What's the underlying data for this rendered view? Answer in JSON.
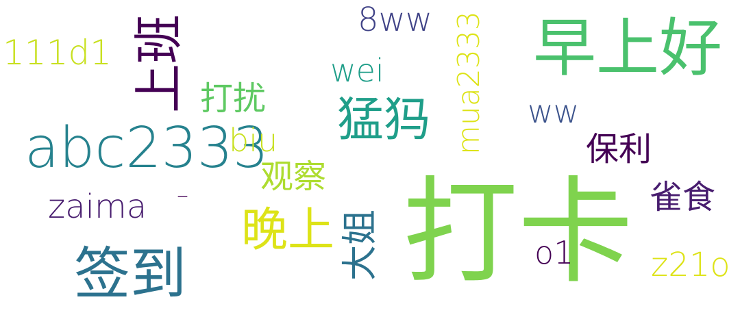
{
  "words": {
    "dk": {
      "text": "打卡",
      "color": "#7fd34e"
    },
    "zsh": {
      "text": "早上好",
      "color": "#4ac16d"
    },
    "abc": {
      "text": "abc2333",
      "color": "#26828e"
    },
    "qd": {
      "text": "签到",
      "color": "#2c728e"
    },
    "sb": {
      "text": "上班",
      "color": "#440154"
    },
    "wan": {
      "text": "晚上",
      "color": "#dde318"
    },
    "mg": {
      "text": "猛犸",
      "color": "#1f9e89"
    },
    "mua": {
      "text": "mua2333",
      "color": "#dde318"
    },
    "dj": {
      "text": "大姐",
      "color": "#2c728e"
    },
    "d111": {
      "text": "111d1",
      "color": "#c8e020"
    },
    "ww8": {
      "text": "8ww",
      "color": "#404387"
    },
    "zaima": {
      "text": "zaima",
      "color": "#481d6f"
    },
    "z21o": {
      "text": "z21o",
      "color": "#dde318"
    },
    "bl": {
      "text": "保利",
      "color": "#440154"
    },
    "qs": {
      "text": "雀食",
      "color": "#481d6f"
    },
    "dr": {
      "text": "打扰",
      "color": "#5ec962"
    },
    "gc": {
      "text": "观察",
      "color": "#addc30"
    },
    "wei": {
      "text": "wei",
      "color": "#1f9e89"
    },
    "biu": {
      "text": "biu",
      "color": "#c8e020"
    },
    "ww": {
      "text": "ww",
      "color": "#3b528b"
    },
    "o1": {
      "text": "o1",
      "color": "#440154"
    },
    "dash": {
      "text": "–",
      "color": "#440154"
    }
  }
}
